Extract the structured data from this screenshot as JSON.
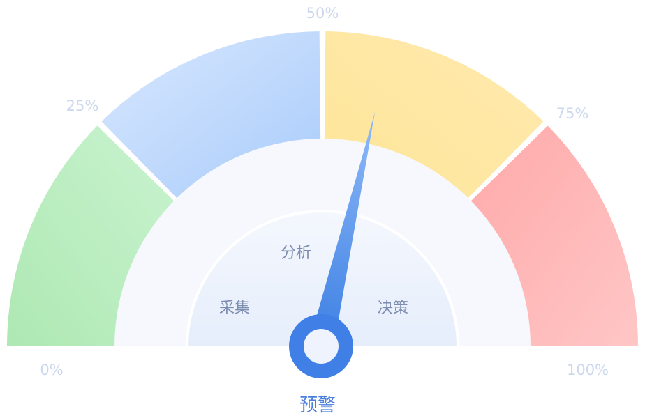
{
  "gauge": {
    "percent_labels": [
      "0%",
      "25%",
      "50%",
      "75%",
      "100%"
    ],
    "segments": [
      {
        "name": "green",
        "from": 0,
        "to": 25,
        "color_light": "#c9f3cf",
        "color_dark": "#aee8b3"
      },
      {
        "name": "blue",
        "from": 25,
        "to": 50,
        "color_light": "#d9e8fe",
        "color_dark": "#a8cbfb"
      },
      {
        "name": "yellow",
        "from": 50,
        "to": 75,
        "color_light": "#ffeab0",
        "color_dark": "#fee597"
      },
      {
        "name": "red",
        "from": 75,
        "to": 100,
        "color_light": "#ffc6c6",
        "color_dark": "#ffa9a9"
      }
    ],
    "inner_labels": {
      "left": "采集",
      "top": "分析",
      "right": "决策"
    },
    "needle_value_percent": 57,
    "needle_color_top": "#8fbaf7",
    "needle_color_bottom": "#3c7fe3",
    "hub_color": "#3f7fe6",
    "bottom_label": "预警"
  }
}
